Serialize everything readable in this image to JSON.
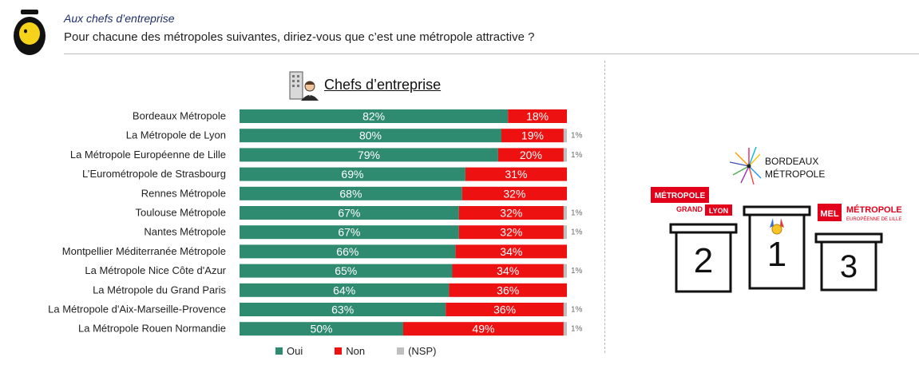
{
  "header": {
    "subtitle": "Aux chefs d’entreprise",
    "question": "Pour chacune des métropoles suivantes, diriez-vous que c’est une métropole attractive ?"
  },
  "section_title": "Chefs d’entreprise",
  "colors": {
    "oui": "#2e8b6f",
    "non": "#ee1111",
    "nsp": "#bfbfbf"
  },
  "chart_data": {
    "type": "bar",
    "orientation": "horizontal",
    "stacked": true,
    "categories": [
      "Bordeaux Métropole",
      "La Métropole de Lyon",
      "La Métropole Européenne de Lille",
      "L’Eurométropole de Strasbourg",
      "Rennes Métropole",
      "Toulouse Métropole",
      "Nantes Métropole",
      "Montpellier Méditerranée Métropole",
      "La Métropole Nice Côte d'Azur",
      "La Métropole du Grand Paris",
      "La Métropole d'Aix-Marseille-Provence",
      "La Métropole Rouen Normandie"
    ],
    "series": [
      {
        "name": "Oui",
        "values": [
          82,
          80,
          79,
          69,
          68,
          67,
          67,
          66,
          65,
          64,
          63,
          50
        ],
        "labels": [
          "82%",
          "80%",
          "79%",
          "69%",
          "68%",
          "67%",
          "67%",
          "66%",
          "65%",
          "64%",
          "63%",
          "50%"
        ]
      },
      {
        "name": "Non",
        "values": [
          18,
          19,
          20,
          31,
          32,
          32,
          32,
          34,
          34,
          36,
          36,
          49
        ],
        "labels": [
          "18%",
          "19%",
          "20%",
          "31%",
          "32%",
          "32%",
          "32%",
          "34%",
          "34%",
          "36%",
          "36%",
          "49%"
        ]
      },
      {
        "name": "(NSP)",
        "values": [
          0,
          1,
          1,
          0,
          0,
          1,
          1,
          0,
          1,
          0,
          1,
          1
        ],
        "labels": [
          "",
          "1%",
          "1%",
          "",
          "",
          "1%",
          "1%",
          "",
          "1%",
          "",
          "1%",
          "1%"
        ]
      }
    ],
    "xlim": [
      0,
      100
    ],
    "legend": {
      "position": "bottom",
      "entries": [
        "Oui",
        "Non",
        "(NSP)"
      ]
    }
  },
  "podium": {
    "first": {
      "rank": "1",
      "logo_line1": "BORDEAUX",
      "logo_line2": "MÉTROPOLE"
    },
    "second": {
      "rank": "2",
      "logo_line1": "MÉTROPOLE",
      "logo_line2a": "GRAND",
      "logo_line2b": "LYON"
    },
    "third": {
      "rank": "3",
      "logo_badge": "MEL",
      "logo_line1": "MÉTROPOLE",
      "logo_line2": "EUROPÉENNE DE LILLE"
    }
  }
}
